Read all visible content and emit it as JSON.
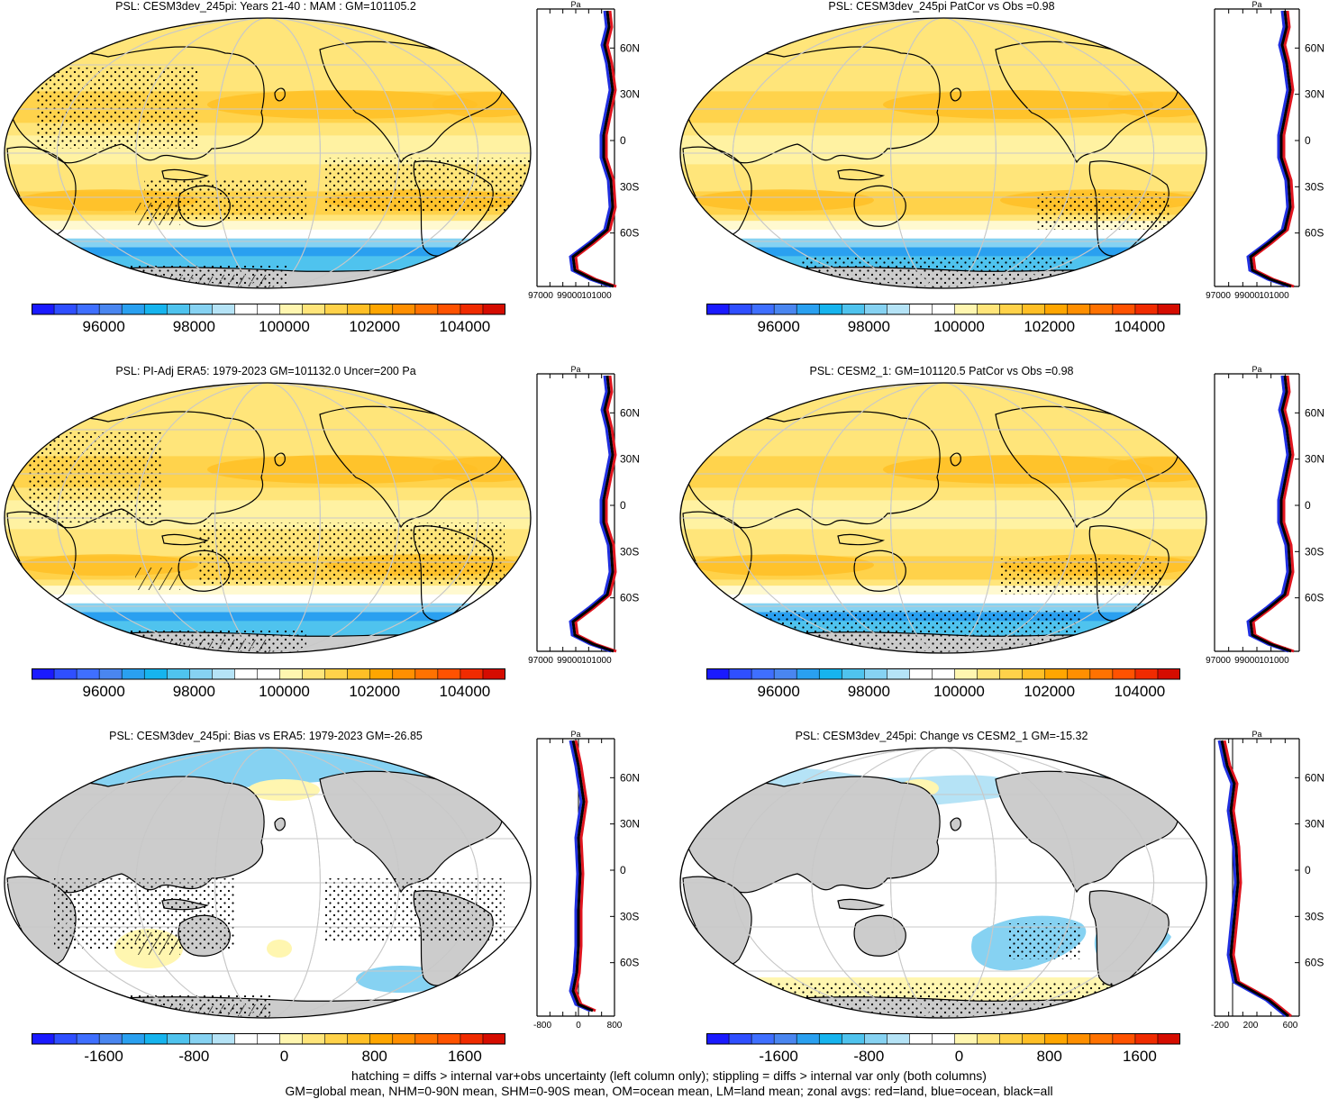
{
  "panels": [
    {
      "title": "PSL: CESM3dev_245pi: Years 21-40 : MAM : GM=101105.2",
      "variant": "abs",
      "cb": "abs",
      "zonal": "abs"
    },
    {
      "title": "PSL: CESM3dev_245pi PatCor vs Obs =0.98",
      "variant": "abs",
      "cb": "abs",
      "zonal": "abs"
    },
    {
      "title": "PSL: PI-Adj ERA5: 1979-2023 GM=101132.0 Uncer=200 Pa",
      "variant": "abs",
      "cb": "abs",
      "zonal": "abs"
    },
    {
      "title": "PSL: CESM2_1: GM=101120.5 PatCor vs Obs =0.98",
      "variant": "abs",
      "cb": "abs",
      "zonal": "abs"
    },
    {
      "title": "PSL: CESM3dev_245pi: Bias vs ERA5: 1979-2023 GM=-26.85",
      "variant": "diff",
      "cb": "diff",
      "zonal": "bias"
    },
    {
      "title": "PSL: CESM3dev_245pi: Change vs CESM2_1 GM=-15.32",
      "variant": "diff",
      "cb": "diff",
      "zonal": "change"
    }
  ],
  "colorbars": {
    "abs": {
      "labels": [
        "96000",
        "98000",
        "100000",
        "102000",
        "104000"
      ],
      "label_positions": [
        2,
        6,
        10,
        14,
        18
      ]
    },
    "diff": {
      "labels": [
        "-1600",
        "-800",
        "0",
        "800",
        "1600"
      ],
      "label_positions": [
        2,
        6,
        10,
        14,
        18
      ]
    }
  },
  "palette": [
    "#1a1aff",
    "#2f4fff",
    "#3f6fff",
    "#4a86f0",
    "#2aa0f0",
    "#16b4ee",
    "#4fc3ee",
    "#86d2f2",
    "#b5e3f6",
    "#ffffff",
    "#ffffff",
    "#fff6b0",
    "#ffe57a",
    "#ffd24a",
    "#ffbf26",
    "#ffa600",
    "#ff8f00",
    "#ff7200",
    "#ff5200",
    "#f02b00",
    "#d50c00"
  ],
  "zonal_axes": {
    "unit": "Pa",
    "lat_labels": [
      "60N",
      "30N",
      "0",
      "30S",
      "60S"
    ],
    "abs_ticks": [
      "97000",
      "99000",
      "101000"
    ],
    "bias_ticks": [
      "-800",
      "0",
      "800"
    ],
    "change_ticks": [
      "-200",
      "200",
      "600"
    ]
  },
  "footer": {
    "line1": "hatching = diffs > internal var+obs uncertainty (left column only); stippling = diffs > internal var only (both columns)",
    "line2": "GM=global mean, NHM=0-90N mean, SHM=0-90S mean, OM=ocean mean, LM=land mean; zonal avgs: red=land, blue=ocean, black=all"
  },
  "colors": {
    "land_red": "#e0141e",
    "ocean_blue": "#1f2ee0",
    "all_black": "#000000",
    "land_gray": "#cccccc"
  }
}
